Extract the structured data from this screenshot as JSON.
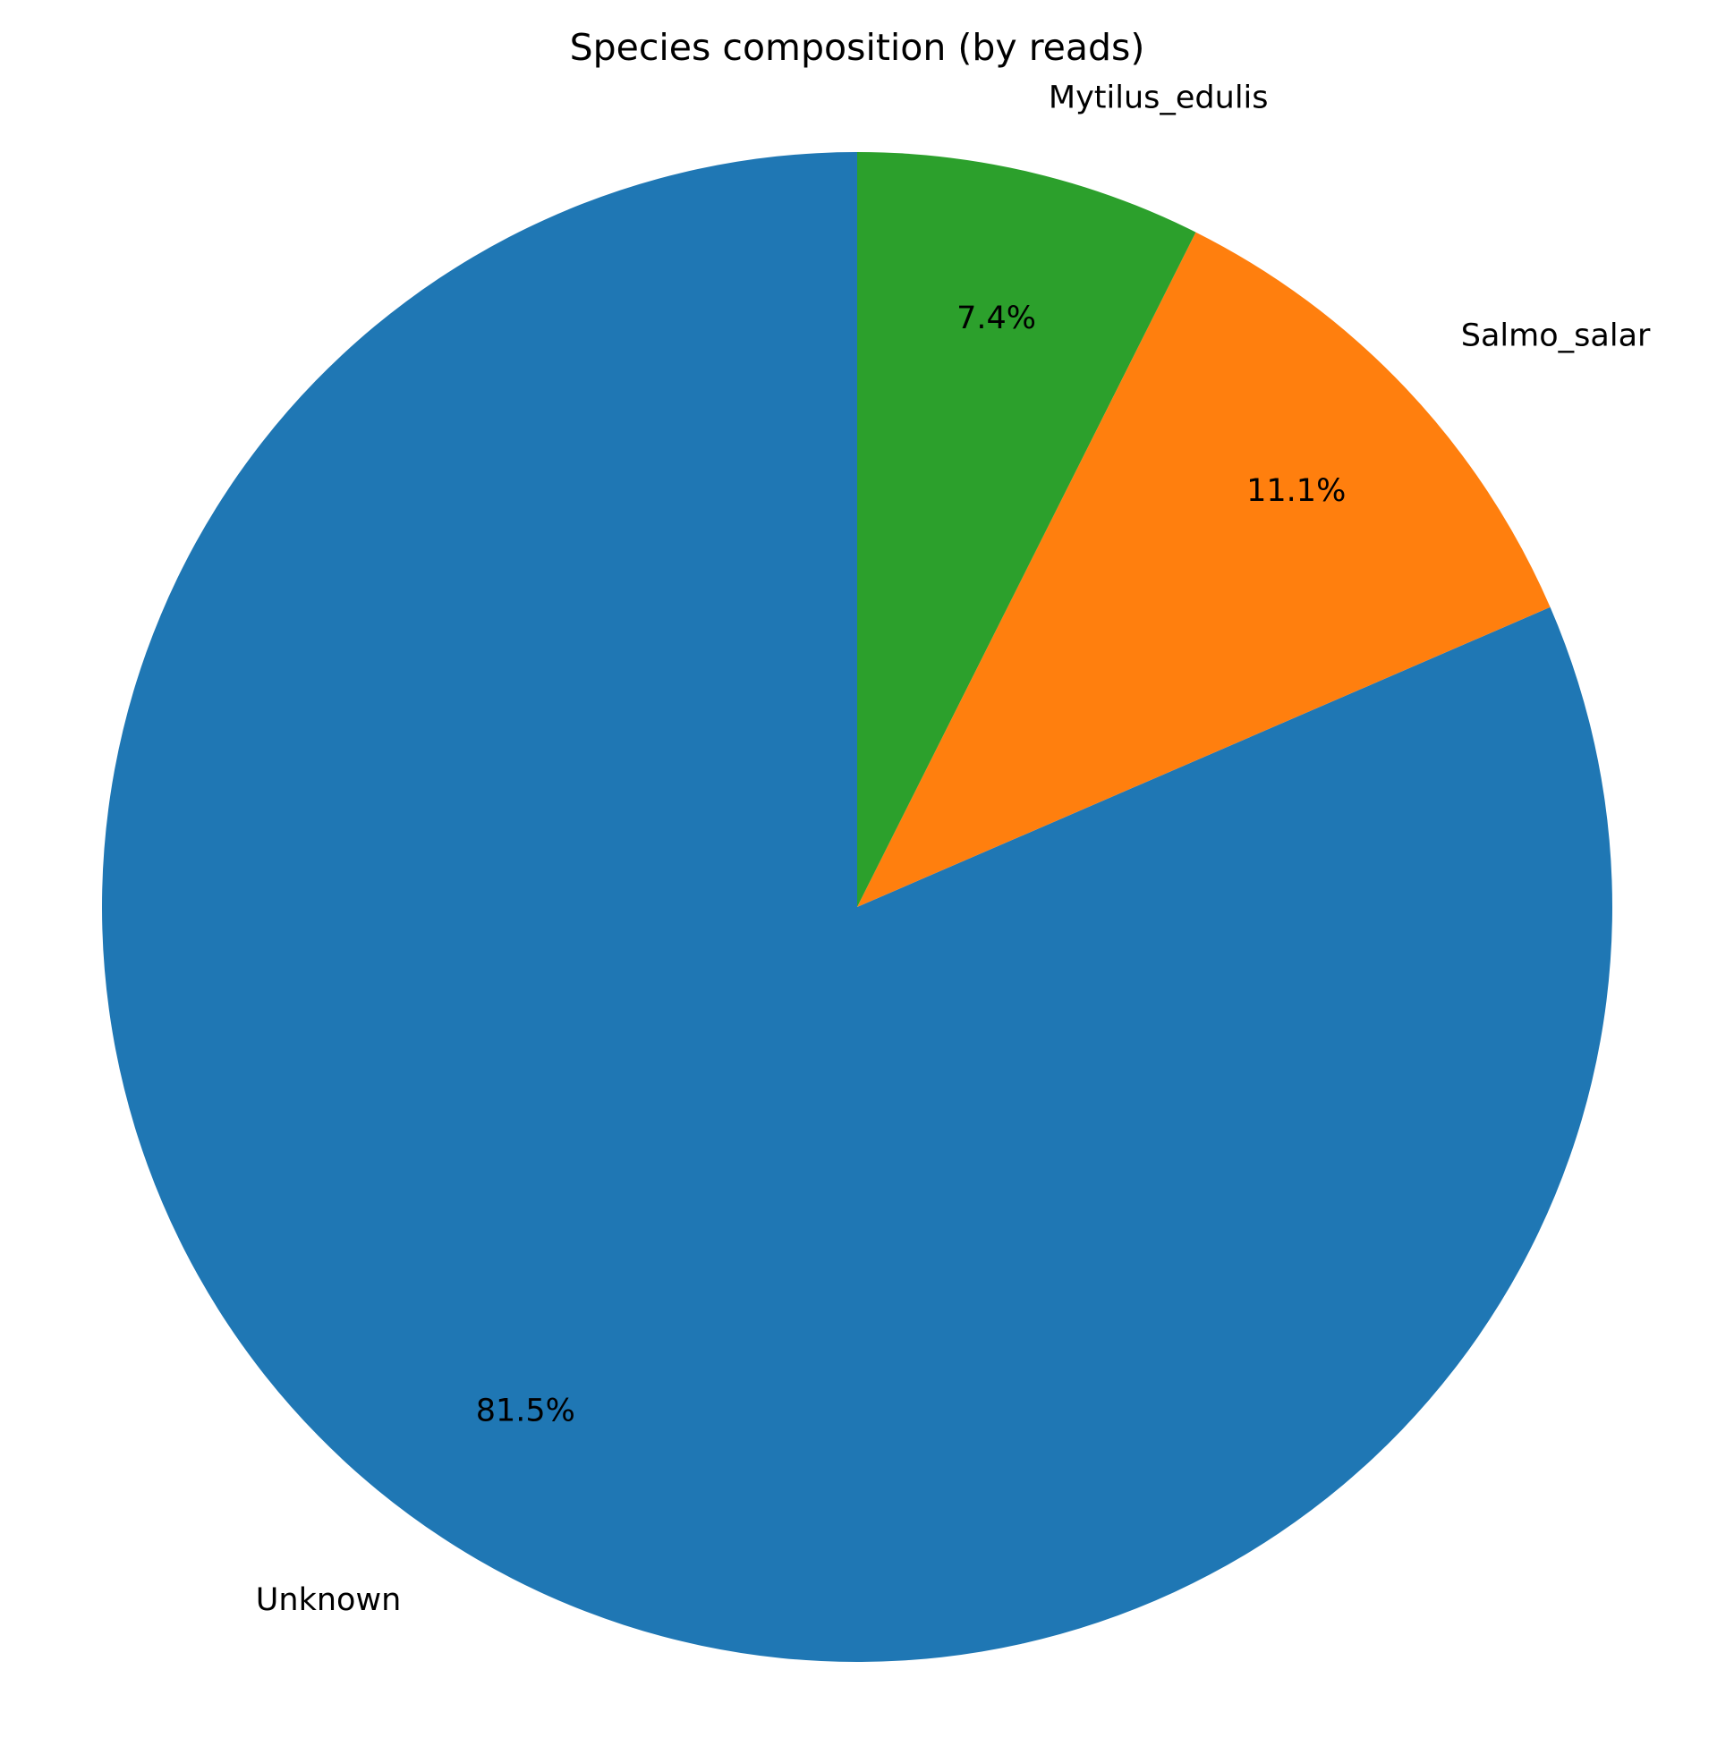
{
  "chart_data": {
    "type": "pie",
    "title": "Species composition (by reads)",
    "start_angle_deg": 90,
    "direction": "counterclockwise",
    "slices": [
      {
        "label": "Unknown",
        "value": 81.5,
        "pct_label": "81.5%",
        "color": "#1f77b4"
      },
      {
        "label": "Salmo_salar",
        "value": 11.1,
        "pct_label": "11.1%",
        "color": "#ff7f0e"
      },
      {
        "label": "Mytilus_edulis",
        "value": 7.4,
        "pct_label": "7.4%",
        "color": "#2ca02c"
      }
    ]
  }
}
